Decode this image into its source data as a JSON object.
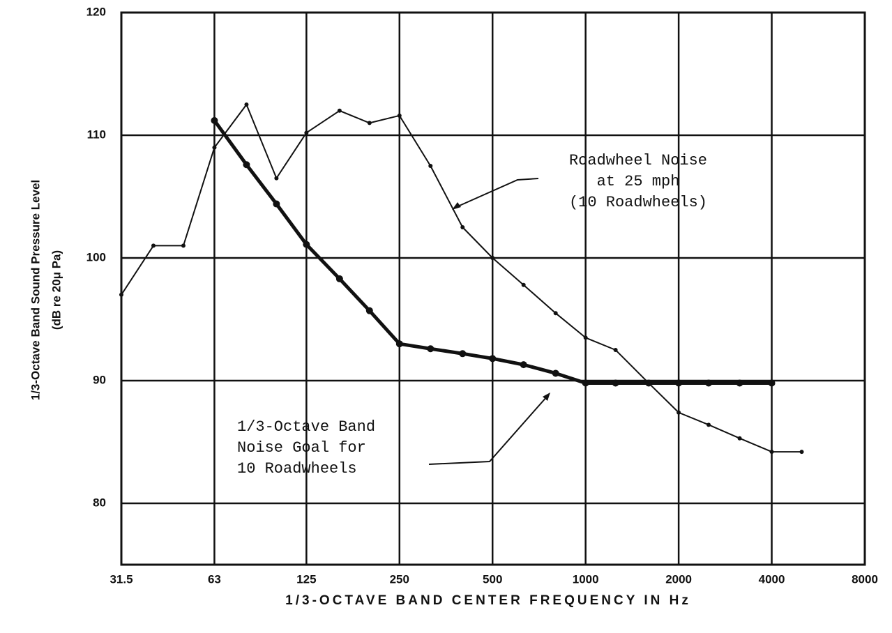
{
  "chart_data": {
    "type": "line",
    "xlabel": "1/3-OCTAVE BAND CENTER FREQUENCY IN Hz",
    "ylabel": [
      "1/3-Octave Band Sound Pressure Level",
      "(dB re 20μ Pa)"
    ],
    "xscale": "log",
    "grid": true,
    "xlim": [
      31.5,
      8000
    ],
    "xticks": [
      31.5,
      63,
      125,
      250,
      500,
      1000,
      2000,
      4000,
      8000
    ],
    "ylim": [
      75,
      120
    ],
    "yticks": [
      80,
      90,
      100,
      110,
      120
    ],
    "series": [
      {
        "name": "Roadwheel Noise at 25 mph (10 Roadwheels)",
        "color": "#111111",
        "x": [
          31.5,
          40,
          50,
          63,
          80,
          100,
          125,
          160,
          200,
          250,
          315,
          400,
          500,
          630,
          800,
          1000,
          1250,
          1600,
          2000,
          2500,
          3150,
          4000,
          5000
        ],
        "values": [
          97,
          101,
          101,
          109,
          112.5,
          106.5,
          110.2,
          112,
          111,
          111.6,
          107.5,
          102.5,
          100,
          97.8,
          95.5,
          93.5,
          92.5,
          89.8,
          87.4,
          86.4,
          85.3,
          84.2,
          84.2
        ]
      },
      {
        "name": "1/3-Octave Band Noise Goal for 10 Roadwheels",
        "color": "#111111",
        "x": [
          63,
          80,
          100,
          125,
          160,
          200,
          250,
          315,
          400,
          500,
          630,
          800,
          1000,
          1250,
          1600,
          2000,
          2500,
          3150,
          4000
        ],
        "values": [
          111.2,
          107.6,
          104.4,
          101.1,
          98.3,
          95.7,
          93,
          92.6,
          92.2,
          91.8,
          91.3,
          90.6,
          89.8,
          89.8,
          89.8,
          89.8,
          89.8,
          89.8,
          89.8
        ]
      }
    ],
    "annotations": [
      {
        "lines": [
          "Roadwheel Noise",
          "at 25 mph",
          "(10 Roadwheels)"
        ]
      },
      {
        "lines": [
          "1/3-Octave Band",
          "Noise Goal for",
          "10 Roadwheels"
        ]
      }
    ]
  }
}
